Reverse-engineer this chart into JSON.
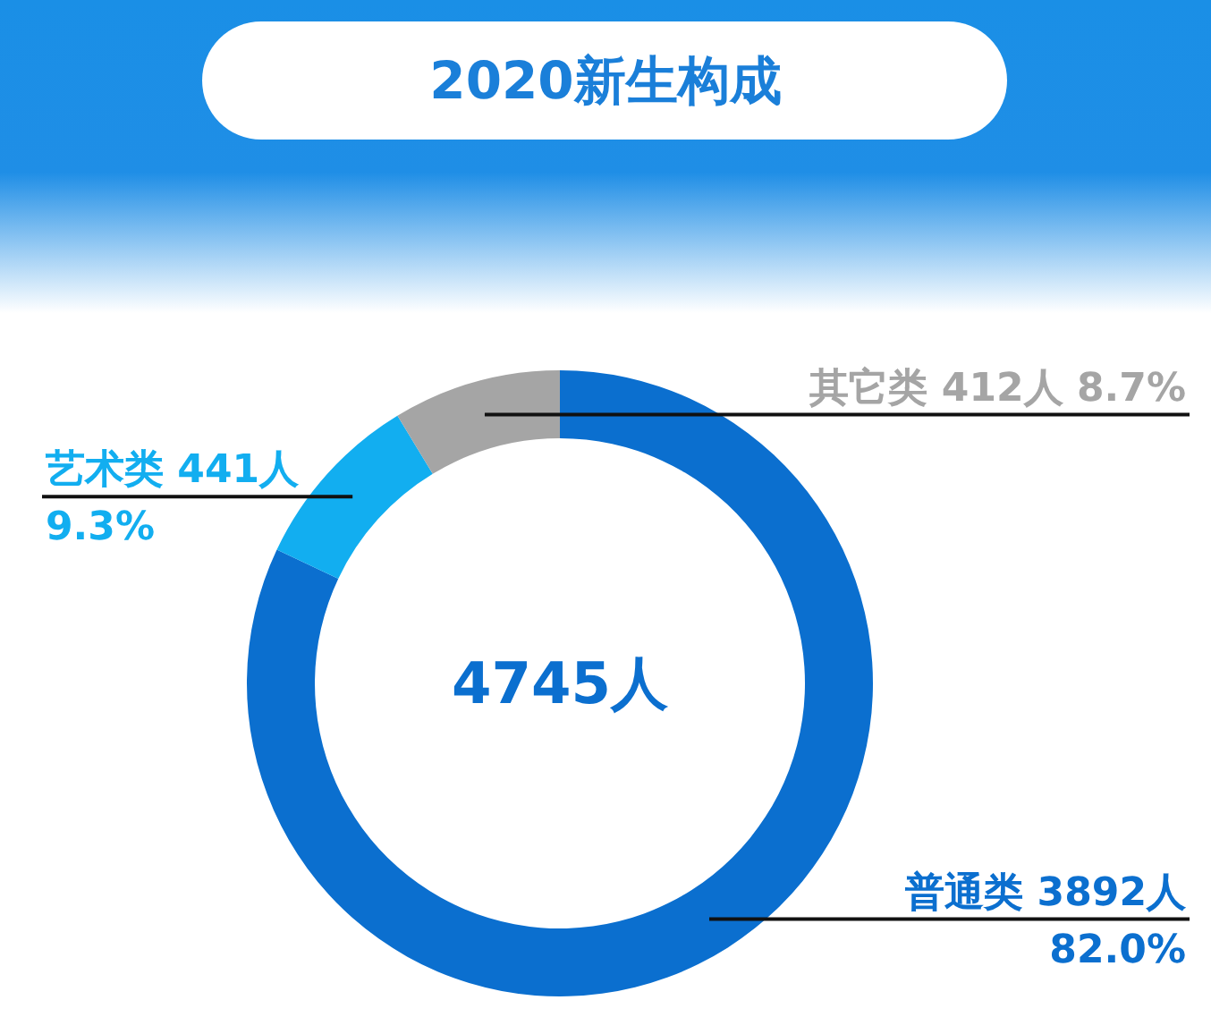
{
  "chart_data": {
    "type": "donut",
    "title": "2020新生构成",
    "categories": [
      "普通类",
      "艺术类",
      "其它类"
    ],
    "values": [
      3892,
      441,
      412
    ],
    "colors": [
      "#0b6fcf",
      "#12aef0",
      "#a5a5a5"
    ],
    "value_labels": [
      "3892人 82.0%",
      "441人 9.3%",
      "412人 8.7%"
    ],
    "annotations": [
      "4745人"
    ]
  }
}
